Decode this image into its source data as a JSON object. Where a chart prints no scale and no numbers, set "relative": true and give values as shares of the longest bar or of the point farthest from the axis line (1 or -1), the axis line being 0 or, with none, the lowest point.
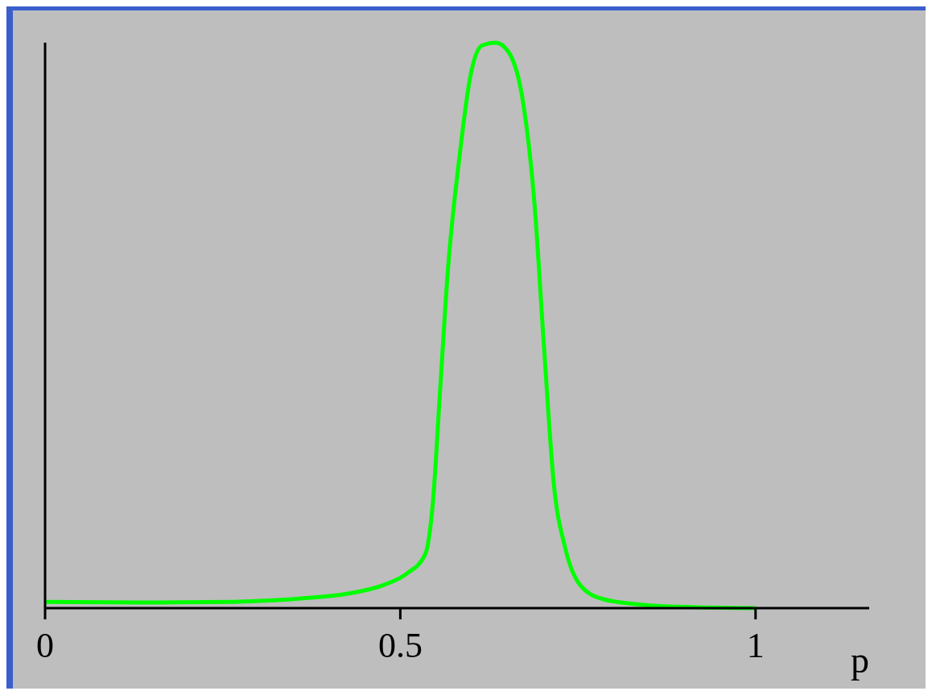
{
  "chart_data": {
    "type": "line",
    "relative": true,
    "xlabel": "p",
    "x": [
      0,
      0.157,
      0.264,
      0.37,
      0.423,
      0.477,
      0.509,
      0.535,
      0.546,
      0.556,
      0.567,
      0.583,
      0.599,
      0.615,
      0.634,
      0.652,
      0.673,
      0.689,
      0.702,
      0.716,
      0.732,
      0.753,
      0.785,
      0.849,
      0.902,
      1
    ],
    "series": [
      {
        "color": "#00ff00",
        "values": [
          0.011,
          0.01,
          0.011,
          0.018,
          0.025,
          0.041,
          0.061,
          0.095,
          0.189,
          0.385,
          0.598,
          0.795,
          0.943,
          0.995,
          1,
          0.984,
          0.893,
          0.713,
          0.467,
          0.221,
          0.107,
          0.041,
          0.016,
          0.005,
          0.002,
          0
        ]
      }
    ],
    "xlim": [
      0,
      1.16
    ],
    "xticks": [
      0,
      0.5,
      1
    ],
    "grid": false,
    "legend": false,
    "marker": "none",
    "line_style": "solid"
  }
}
